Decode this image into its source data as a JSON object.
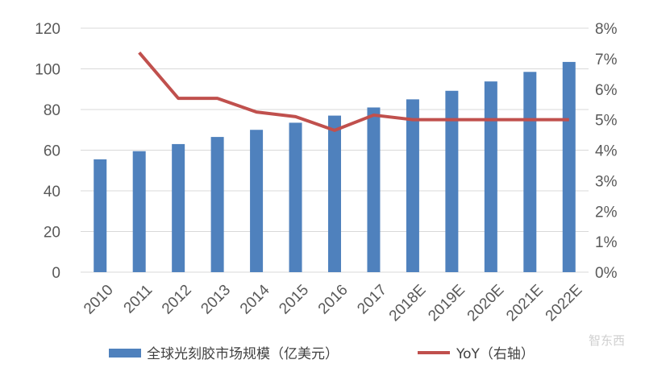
{
  "chart_data": {
    "type": "bar",
    "categories": [
      "2010",
      "2011",
      "2012",
      "2013",
      "2014",
      "2015",
      "2016",
      "2017",
      "2018E",
      "2019E",
      "2020E",
      "2021E",
      "2022E"
    ],
    "series": [
      {
        "name": "全球光刻胶市场规模（亿美元）",
        "type": "bar",
        "axis": "left",
        "color": "#4F81BD",
        "values": [
          55.5,
          59.5,
          63,
          66.5,
          70,
          73.5,
          77,
          81,
          85,
          89.2,
          93.8,
          98.5,
          103.4
        ]
      },
      {
        "name": "YoY（右轴）",
        "type": "line",
        "axis": "right",
        "color": "#C0504D",
        "values": [
          null,
          7.2,
          5.7,
          5.7,
          5.25,
          5.1,
          4.65,
          5.15,
          5.0,
          5.0,
          5.0,
          5.0,
          5.0
        ]
      }
    ],
    "y_left": {
      "min": 0,
      "max": 120,
      "ticks": [
        0,
        20,
        40,
        60,
        80,
        100,
        120
      ]
    },
    "y_right": {
      "min": 0,
      "max": 8,
      "ticks": [
        "0%",
        "1%",
        "2%",
        "3%",
        "4%",
        "5%",
        "6%",
        "7%",
        "8%"
      ]
    },
    "grid": true,
    "legend_position": "bottom",
    "title": ""
  },
  "watermark": "智东西"
}
